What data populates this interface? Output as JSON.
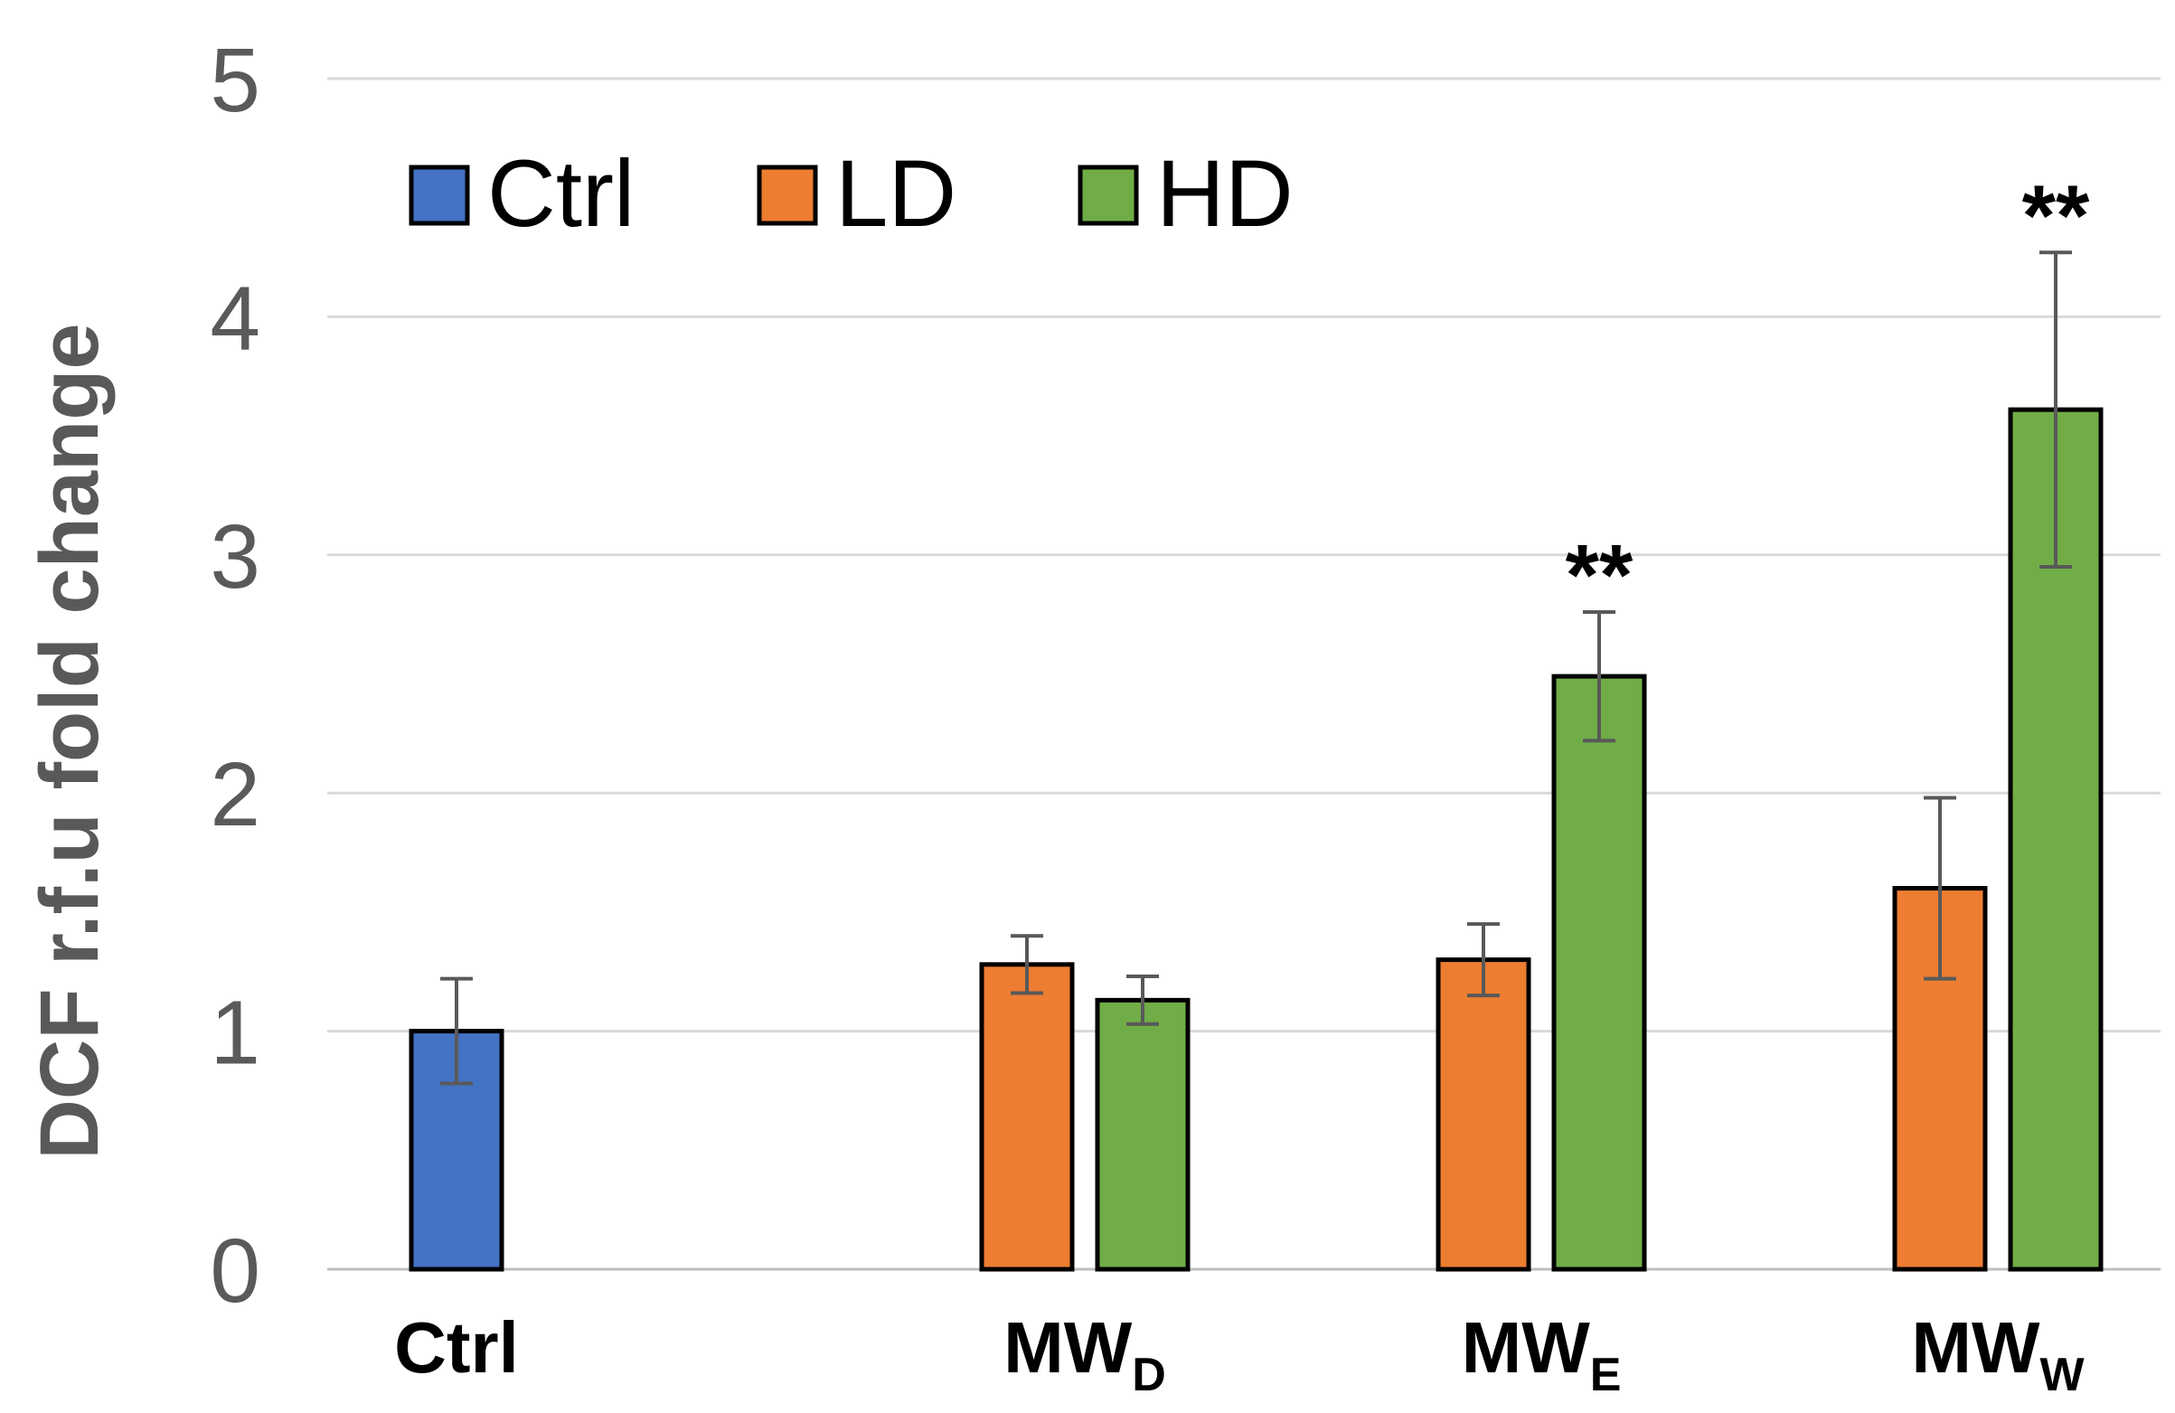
{
  "chart_data": {
    "type": "bar",
    "title": "",
    "xlabel": "",
    "ylabel": "DCF r.f.u fold change",
    "ylim": [
      0,
      5
    ],
    "yticks": [
      0,
      1,
      2,
      3,
      4,
      5
    ],
    "grid": true,
    "legend_position": "top-left",
    "categories": [
      {
        "main": "Ctrl",
        "sub": ""
      },
      {
        "main": "MW",
        "sub": "D"
      },
      {
        "main": "MW",
        "sub": "E"
      },
      {
        "main": "MW",
        "sub": "W"
      }
    ],
    "series": [
      {
        "name": "Ctrl",
        "color": "#4472c4",
        "values": [
          1.0,
          null,
          null,
          null
        ],
        "errors": [
          0.22,
          null,
          null,
          null
        ],
        "significance": [
          "",
          "",
          "",
          ""
        ]
      },
      {
        "name": "LD",
        "color": "#ed7d31",
        "values": [
          null,
          1.28,
          1.3,
          1.6
        ],
        "errors": [
          null,
          0.12,
          0.15,
          0.38
        ],
        "significance": [
          "",
          "",
          "",
          ""
        ]
      },
      {
        "name": "HD",
        "color": "#70ad47",
        "values": [
          null,
          1.13,
          2.49,
          3.61
        ],
        "errors": [
          null,
          0.1,
          0.27,
          0.66
        ],
        "significance": [
          "",
          "",
          "**",
          "**"
        ]
      }
    ]
  }
}
